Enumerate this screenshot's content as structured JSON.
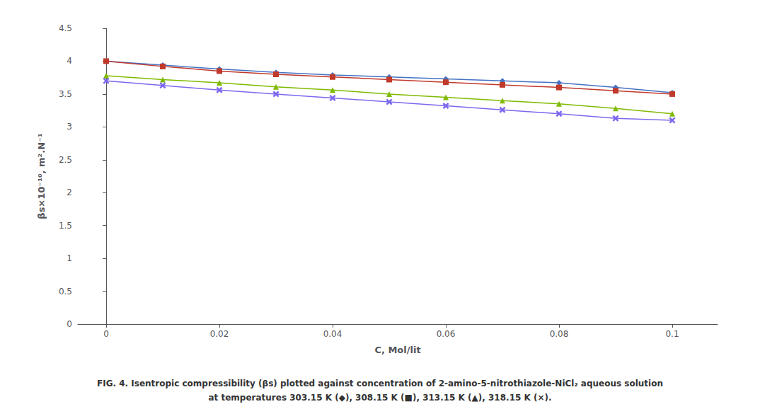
{
  "chart_data": {
    "type": "line",
    "xlabel": "C, Mol/lit",
    "ylabel": "βs×10⁻¹⁰, m².N⁻¹",
    "annotations": [
      "FIG. 4. Isentropic compressibility (βs) plotted against concentration of 2-amino-5-nitrothiazole-NiCl₂ aqueous solution",
      "at temperatures 303.15 K (◆), 308.15 K (■), 313.15 K (▲), 318.15 K (×)."
    ],
    "x": [
      0,
      0.01,
      0.02,
      0.03,
      0.04,
      0.05,
      0.06,
      0.07,
      0.08,
      0.09,
      0.1
    ],
    "series": [
      {
        "name": "303.15 K",
        "color": "#4472C4",
        "marker": "diamond",
        "line_style": "solid",
        "values": [
          4.0,
          3.94,
          3.88,
          3.83,
          3.79,
          3.76,
          3.73,
          3.7,
          3.67,
          3.6,
          3.52
        ]
      },
      {
        "name": "308.15 K",
        "color": "#C0392B",
        "marker": "square",
        "line_style": "solid",
        "values": [
          4.0,
          3.92,
          3.85,
          3.8,
          3.76,
          3.72,
          3.68,
          3.64,
          3.6,
          3.55,
          3.5
        ]
      },
      {
        "name": "313.15 K",
        "color": "#7FBA00",
        "marker": "triangle",
        "line_style": "solid",
        "values": [
          3.78,
          3.72,
          3.67,
          3.61,
          3.56,
          3.5,
          3.45,
          3.4,
          3.35,
          3.28,
          3.2
        ]
      },
      {
        "name": "318.15 K",
        "color": "#7B68EE",
        "marker": "x",
        "line_style": "solid",
        "values": [
          3.7,
          3.63,
          3.56,
          3.5,
          3.44,
          3.38,
          3.32,
          3.26,
          3.2,
          3.13,
          3.1
        ]
      }
    ],
    "xlim": [
      -0.005,
      0.108
    ],
    "xticks": [
      0,
      0.02,
      0.04,
      0.06,
      0.08,
      0.1
    ],
    "ylim": [
      0,
      4.5
    ],
    "yticks": [
      0,
      0.5,
      1,
      1.5,
      2,
      2.5,
      3,
      3.5,
      4,
      4.5
    ],
    "grid": false
  }
}
